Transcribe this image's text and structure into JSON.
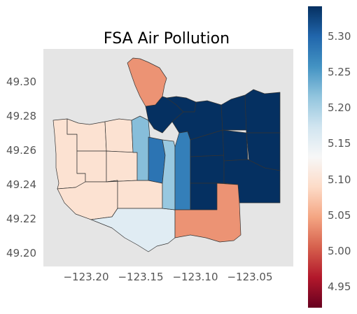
{
  "chart_data": {
    "type": "choropleth",
    "title": "FSA Air Pollution",
    "xlabel": "",
    "ylabel": "",
    "x_ticks": [
      "−123.20",
      "−123.15",
      "−123.10",
      "−123.05"
    ],
    "y_ticks": [
      "49.30",
      "49.28",
      "49.26",
      "49.24",
      "49.22",
      "49.20"
    ],
    "colorbar": {
      "colormap": "RdBu",
      "range": [
        4.92,
        5.34
      ],
      "ticks": [
        "5.30",
        "5.25",
        "5.20",
        "5.15",
        "5.10",
        "5.05",
        "5.00",
        "4.95"
      ]
    },
    "regions": [
      {
        "value": 5.035
      },
      {
        "value": 5.098
      },
      {
        "value": 5.098
      },
      {
        "value": 5.098
      },
      {
        "value": 5.098
      },
      {
        "value": 5.098
      },
      {
        "value": 5.098
      },
      {
        "value": 5.098
      },
      {
        "value": 5.155
      },
      {
        "value": 5.22
      },
      {
        "value": 5.285
      },
      {
        "value": 5.21
      },
      {
        "value": 5.275
      },
      {
        "value": 5.34
      },
      {
        "value": 5.34
      },
      {
        "value": 5.34
      },
      {
        "value": 5.34
      },
      {
        "value": 5.34
      },
      {
        "value": 5.34
      },
      {
        "value": 5.34
      },
      {
        "value": 5.34
      },
      {
        "value": 5.34
      },
      {
        "value": 5.34
      },
      {
        "value": 5.34
      },
      {
        "value": 5.035
      }
    ]
  }
}
